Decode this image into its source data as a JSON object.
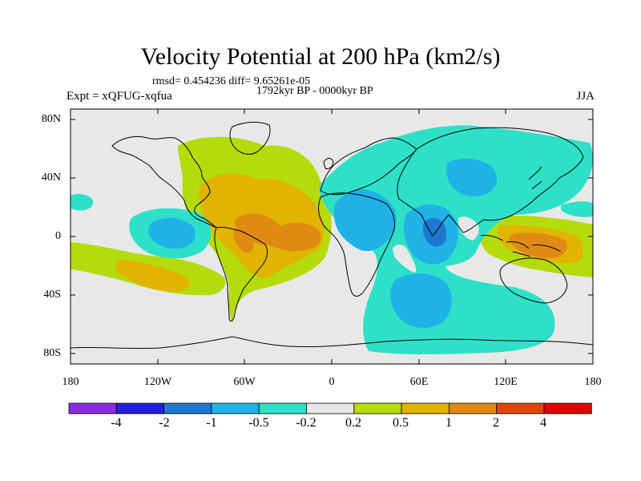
{
  "title": "Velocity Potential at 200 hPa (km2/s)",
  "stats_line": "rmsd= 0.454236 diff= 9.65261e-05",
  "period": "1792kyr BP - 0000kyr BP",
  "experiment": "Expt = xQFUG-xqfua",
  "season": "JJA",
  "axes": {
    "x_ticks": [
      "180",
      "120W",
      "60W",
      "0",
      "60E",
      "120E",
      "180"
    ],
    "y_ticks": [
      "80N",
      "40N",
      "0",
      "40S",
      "80S"
    ],
    "lon_range": [
      -180,
      180
    ],
    "lat_range": [
      -90,
      90
    ]
  },
  "colorbar": {
    "labels": [
      "-4",
      "-2",
      "-1",
      "-0.5",
      "-0.2",
      "0.2",
      "0.5",
      "1",
      "2",
      "4"
    ],
    "colors": [
      "#8a2be2",
      "#2222dd",
      "#1e78d2",
      "#1fb3e8",
      "#2fe0c8",
      "#e8e8e8",
      "#b4dc0a",
      "#e0b400",
      "#e08a14",
      "#e0460a",
      "#e00000"
    ]
  },
  "palette": {
    "background": "#e8e8e8",
    "neg_02": "#2fe0c8",
    "neg_05": "#1fb3e8",
    "neg_1": "#1e78d2",
    "pos_02": "#b4dc0a",
    "pos_05": "#e0b400",
    "pos_1": "#e08a14"
  }
}
